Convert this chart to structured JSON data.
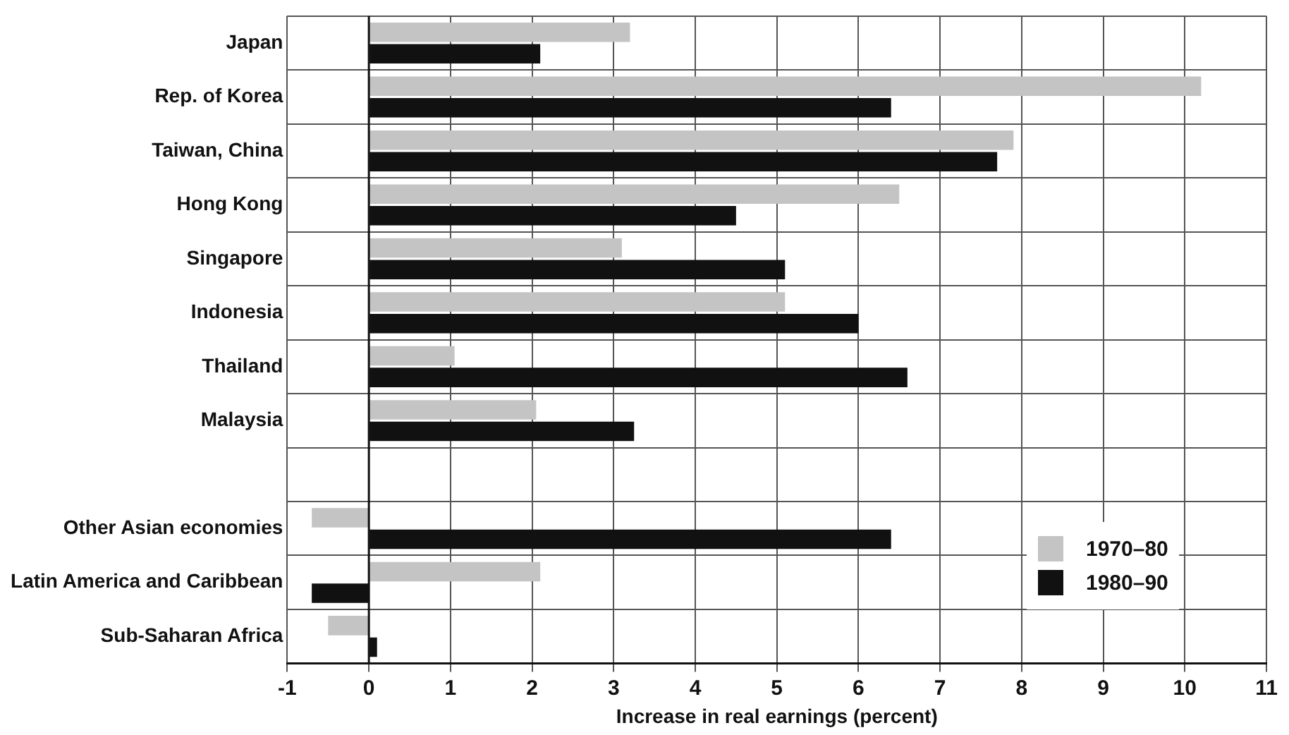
{
  "chart_data": {
    "type": "bar",
    "orientation": "horizontal",
    "xlabel": "Increase in real earnings (percent)",
    "categories": [
      "Japan",
      "Rep. of Korea",
      "Taiwan, China",
      "Hong Kong",
      "Singapore",
      "Indonesia",
      "Thailand",
      "Malaysia",
      null,
      "Other Asian economies",
      "Latin America and Caribbean",
      "Sub-Saharan Africa"
    ],
    "series": [
      {
        "name": "1970–80",
        "color": "#c4c4c4",
        "values": [
          3.2,
          10.2,
          7.9,
          6.5,
          3.1,
          5.1,
          1.05,
          2.05,
          null,
          -0.7,
          2.1,
          -0.5
        ]
      },
      {
        "name": "1980–90",
        "color": "#111111",
        "values": [
          2.1,
          6.4,
          7.7,
          4.5,
          5.1,
          6.0,
          6.6,
          3.25,
          null,
          6.4,
          -0.7,
          0.1
        ]
      }
    ],
    "xlim": [
      -1,
      11
    ],
    "xticks": [
      -1,
      0,
      1,
      2,
      3,
      4,
      5,
      6,
      7,
      8,
      9,
      10,
      11
    ],
    "grid": true,
    "legend": "bottom right"
  }
}
